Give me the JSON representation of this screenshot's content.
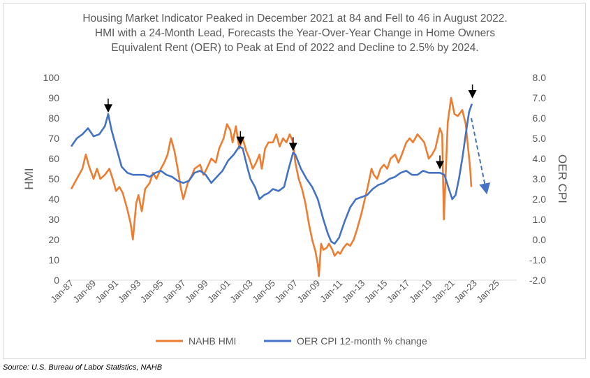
{
  "title_lines": [
    "Housing Market Indicator Peaked in December 2021 at 84 and Fell to 46 in August 2022.",
    "HMI with a 24-Month Lead, Forecasts the Year-Over-Year Change in Home Owners",
    "Equivalent Rent (OER) to Peak at End of 2022 and Decline to 2.5% by 2024."
  ],
  "source": "Source: U.S. Bureau of Labor Statistics, NAHB",
  "chart_data": {
    "type": "line",
    "xlabel": "",
    "ylabel_left": "HMI",
    "ylabel_right": "OER CPI",
    "ylim_left": [
      0,
      100
    ],
    "ylim_right": [
      -2.0,
      8.0
    ],
    "yticks_left": [
      "0",
      "10",
      "20",
      "30",
      "40",
      "50",
      "60",
      "70",
      "80",
      "90",
      "100"
    ],
    "yticks_right": [
      "-2.0",
      "-1.0",
      "0.0",
      "1.0",
      "2.0",
      "3.0",
      "4.0",
      "5.0",
      "6.0",
      "7.0",
      "8.0"
    ],
    "xticks": [
      "Jan-87",
      "Jan-89",
      "Jan-91",
      "Jan-93",
      "Jan-95",
      "Jan-97",
      "Jan-99",
      "Jan-01",
      "Jan-03",
      "Jan-05",
      "Jan-07",
      "Jan-09",
      "Jan-11",
      "Jan-13",
      "Jan-15",
      "Jan-17",
      "Jan-19",
      "Jan-21",
      "Jan-23",
      "Jan-25"
    ],
    "xlim": [
      1987.0,
      2025.8
    ],
    "grid": false,
    "legend_position": "bottom",
    "colors": {
      "hmi": "#ED7D31",
      "oer": "#4472C4",
      "arrow": "#000000"
    },
    "series": [
      {
        "name": "NAHB HMI",
        "axis": "left",
        "points": [
          [
            1987.0,
            45
          ],
          [
            1987.5,
            50
          ],
          [
            1988.0,
            55
          ],
          [
            1988.3,
            62
          ],
          [
            1988.6,
            56
          ],
          [
            1989.0,
            50
          ],
          [
            1989.3,
            55
          ],
          [
            1989.6,
            50
          ],
          [
            1990.0,
            52
          ],
          [
            1990.4,
            55
          ],
          [
            1990.7,
            50
          ],
          [
            1991.0,
            44
          ],
          [
            1991.3,
            46
          ],
          [
            1991.6,
            43
          ],
          [
            1992.0,
            35
          ],
          [
            1992.3,
            28
          ],
          [
            1992.5,
            20
          ],
          [
            1992.8,
            38
          ],
          [
            1993.0,
            42
          ],
          [
            1993.3,
            34
          ],
          [
            1993.6,
            45
          ],
          [
            1994.0,
            48
          ],
          [
            1994.3,
            53
          ],
          [
            1994.6,
            50
          ],
          [
            1995.0,
            55
          ],
          [
            1995.3,
            58
          ],
          [
            1995.6,
            62
          ],
          [
            1995.9,
            70
          ],
          [
            1996.2,
            64
          ],
          [
            1996.5,
            55
          ],
          [
            1996.8,
            45
          ],
          [
            1997.0,
            40
          ],
          [
            1997.4,
            48
          ],
          [
            1997.8,
            52
          ],
          [
            1998.0,
            55
          ],
          [
            1998.5,
            57
          ],
          [
            1998.8,
            52
          ],
          [
            1999.0,
            54
          ],
          [
            1999.5,
            60
          ],
          [
            1999.9,
            58
          ],
          [
            2000.2,
            65
          ],
          [
            2000.6,
            70
          ],
          [
            2000.9,
            77
          ],
          [
            2001.2,
            74
          ],
          [
            2001.4,
            68
          ],
          [
            2001.7,
            76
          ],
          [
            2002.0,
            65
          ],
          [
            2002.3,
            70
          ],
          [
            2002.6,
            64
          ],
          [
            2002.9,
            60
          ],
          [
            2003.2,
            55
          ],
          [
            2003.5,
            58
          ],
          [
            2003.8,
            62
          ],
          [
            2004.0,
            55
          ],
          [
            2004.3,
            65
          ],
          [
            2004.6,
            68
          ],
          [
            2005.0,
            68
          ],
          [
            2005.3,
            72
          ],
          [
            2005.6,
            66
          ],
          [
            2005.9,
            70
          ],
          [
            2006.2,
            68
          ],
          [
            2006.5,
            72
          ],
          [
            2006.8,
            68
          ],
          [
            2007.0,
            58
          ],
          [
            2007.3,
            50
          ],
          [
            2007.6,
            45
          ],
          [
            2007.9,
            38
          ],
          [
            2008.2,
            28
          ],
          [
            2008.5,
            20
          ],
          [
            2008.8,
            14
          ],
          [
            2009.0,
            8
          ],
          [
            2009.1,
            2
          ],
          [
            2009.3,
            18
          ],
          [
            2009.5,
            15
          ],
          [
            2009.8,
            16
          ],
          [
            2010.0,
            18
          ],
          [
            2010.3,
            15
          ],
          [
            2010.5,
            12
          ],
          [
            2010.8,
            14
          ],
          [
            2011.0,
            13
          ],
          [
            2011.3,
            16
          ],
          [
            2011.6,
            18
          ],
          [
            2011.9,
            17
          ],
          [
            2012.2,
            20
          ],
          [
            2012.5,
            25
          ],
          [
            2012.9,
            33
          ],
          [
            2013.2,
            40
          ],
          [
            2013.5,
            47
          ],
          [
            2013.8,
            55
          ],
          [
            2014.0,
            52
          ],
          [
            2014.3,
            50
          ],
          [
            2014.6,
            55
          ],
          [
            2014.9,
            57
          ],
          [
            2015.2,
            55
          ],
          [
            2015.5,
            60
          ],
          [
            2015.9,
            62
          ],
          [
            2016.2,
            58
          ],
          [
            2016.5,
            62
          ],
          [
            2016.9,
            68
          ],
          [
            2017.2,
            70
          ],
          [
            2017.5,
            68
          ],
          [
            2017.9,
            72
          ],
          [
            2018.2,
            70
          ],
          [
            2018.5,
            68
          ],
          [
            2018.9,
            60
          ],
          [
            2019.2,
            62
          ],
          [
            2019.5,
            65
          ],
          [
            2019.9,
            75
          ],
          [
            2020.1,
            72
          ],
          [
            2020.25,
            30
          ],
          [
            2020.4,
            50
          ],
          [
            2020.6,
            78
          ],
          [
            2020.9,
            90
          ],
          [
            2021.2,
            82
          ],
          [
            2021.5,
            81
          ],
          [
            2021.9,
            84
          ],
          [
            2022.2,
            77
          ],
          [
            2022.6,
            55
          ],
          [
            2022.7,
            46
          ]
        ]
      },
      {
        "name": "OER CPI 12-month % change",
        "axis": "right",
        "points": [
          [
            1987.0,
            4.6
          ],
          [
            1987.5,
            5.0
          ],
          [
            1988.0,
            5.2
          ],
          [
            1988.5,
            5.5
          ],
          [
            1989.0,
            5.1
          ],
          [
            1989.5,
            5.2
          ],
          [
            1990.0,
            5.6
          ],
          [
            1990.3,
            6.2
          ],
          [
            1990.6,
            5.4
          ],
          [
            1991.0,
            4.6
          ],
          [
            1991.5,
            3.6
          ],
          [
            1992.0,
            3.3
          ],
          [
            1992.5,
            3.2
          ],
          [
            1993.0,
            3.2
          ],
          [
            1993.5,
            3.2
          ],
          [
            1994.0,
            3.1
          ],
          [
            1994.5,
            3.3
          ],
          [
            1995.0,
            3.4
          ],
          [
            1995.5,
            3.2
          ],
          [
            1996.0,
            3.1
          ],
          [
            1996.5,
            2.9
          ],
          [
            1997.0,
            2.8
          ],
          [
            1997.5,
            2.9
          ],
          [
            1998.0,
            3.3
          ],
          [
            1998.5,
            3.4
          ],
          [
            1999.0,
            3.2
          ],
          [
            1999.5,
            2.8
          ],
          [
            2000.0,
            3.1
          ],
          [
            2000.5,
            3.4
          ],
          [
            2001.0,
            3.9
          ],
          [
            2001.5,
            4.2
          ],
          [
            2002.0,
            4.6
          ],
          [
            2002.3,
            4.5
          ],
          [
            2002.7,
            3.6
          ],
          [
            2003.0,
            3.0
          ],
          [
            2003.4,
            2.6
          ],
          [
            2003.8,
            2.0
          ],
          [
            2004.2,
            2.2
          ],
          [
            2004.6,
            2.3
          ],
          [
            2005.0,
            2.5
          ],
          [
            2005.5,
            2.4
          ],
          [
            2006.0,
            2.6
          ],
          [
            2006.4,
            3.5
          ],
          [
            2006.8,
            4.3
          ],
          [
            2007.0,
            4.2
          ],
          [
            2007.5,
            3.5
          ],
          [
            2008.0,
            3.0
          ],
          [
            2008.5,
            2.6
          ],
          [
            2009.0,
            2.0
          ],
          [
            2009.5,
            1.0
          ],
          [
            2009.9,
            0.3
          ],
          [
            2010.2,
            -0.1
          ],
          [
            2010.5,
            -0.2
          ],
          [
            2010.9,
            0.1
          ],
          [
            2011.4,
            0.9
          ],
          [
            2011.9,
            1.6
          ],
          [
            2012.4,
            2.0
          ],
          [
            2012.9,
            2.1
          ],
          [
            2013.4,
            2.2
          ],
          [
            2013.9,
            2.5
          ],
          [
            2014.4,
            2.7
          ],
          [
            2014.9,
            2.8
          ],
          [
            2015.4,
            3.0
          ],
          [
            2015.9,
            3.1
          ],
          [
            2016.4,
            3.3
          ],
          [
            2016.9,
            3.4
          ],
          [
            2017.4,
            3.2
          ],
          [
            2017.9,
            3.2
          ],
          [
            2018.4,
            3.4
          ],
          [
            2018.9,
            3.3
          ],
          [
            2019.4,
            3.3
          ],
          [
            2019.9,
            3.3
          ],
          [
            2020.3,
            3.2
          ],
          [
            2020.7,
            2.5
          ],
          [
            2021.0,
            2.0
          ],
          [
            2021.3,
            2.2
          ],
          [
            2021.6,
            3.0
          ],
          [
            2021.9,
            4.0
          ],
          [
            2022.2,
            5.2
          ],
          [
            2022.5,
            6.3
          ],
          [
            2022.75,
            6.7
          ]
        ]
      }
    ],
    "annotations": [
      {
        "type": "arrow",
        "x": 1990.3,
        "axis": "right",
        "y": 6.2
      },
      {
        "type": "arrow",
        "x": 2002.1,
        "axis": "right",
        "y": 4.6
      },
      {
        "type": "arrow",
        "x": 2006.8,
        "axis": "right",
        "y": 4.3
      },
      {
        "type": "arrow",
        "x": 2019.9,
        "axis": "right",
        "y": 3.4
      },
      {
        "type": "arrow",
        "x": 2022.8,
        "axis": "right",
        "y": 6.9
      },
      {
        "type": "dashed-arrow",
        "from": [
          2022.7,
          6.0
        ],
        "to": [
          2024.0,
          2.5
        ],
        "axis": "right"
      }
    ]
  }
}
